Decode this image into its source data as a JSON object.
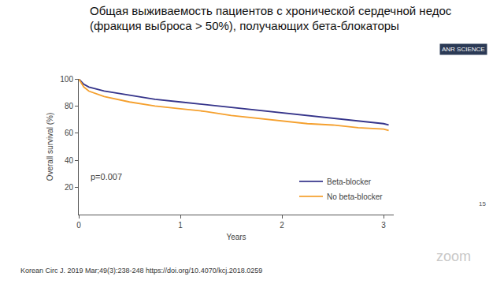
{
  "chart_data": {
    "type": "line",
    "title": "Общая выживаемость пациентов с хронической сердечной недос\n(фракция выброса > 50%), получающих бета-блокаторы",
    "x_label": "Years",
    "y_label": "Overall survival (%)",
    "x": [
      0,
      0.05,
      0.1,
      0.25,
      0.5,
      0.75,
      1,
      1.25,
      1.5,
      1.75,
      2,
      2.25,
      2.5,
      2.75,
      3,
      3.05
    ],
    "series": [
      {
        "name": "Beta-blocker",
        "color": "#35348a",
        "line_style": "solid",
        "values": [
          100,
          96,
          94,
          91,
          88,
          85,
          83,
          81,
          79,
          77,
          75,
          73,
          71,
          69,
          67,
          66
        ]
      },
      {
        "name": "No beta-blocker",
        "color": "#f5a02e",
        "line_style": "solid",
        "values": [
          100,
          94,
          91,
          87,
          83,
          80,
          78,
          76,
          73,
          71,
          69,
          67,
          66,
          64,
          63,
          62
        ]
      }
    ],
    "xlim": [
      0,
      3.1
    ],
    "xticks": [
      0,
      1,
      2,
      3
    ],
    "ylim": [
      0,
      100
    ],
    "yticks": [
      20,
      40,
      60,
      80,
      100
    ],
    "grid": false,
    "legend": "lower right",
    "annotations": {
      "p_value": "p=0.007",
      "source": "Korean Circ J. 2019 Mar;49(3):238-248 https://doi.org/10.4070/kcj.2018.0259",
      "page": "15",
      "overlay": "ANR SCIENCE",
      "watermark": "zoom"
    }
  }
}
